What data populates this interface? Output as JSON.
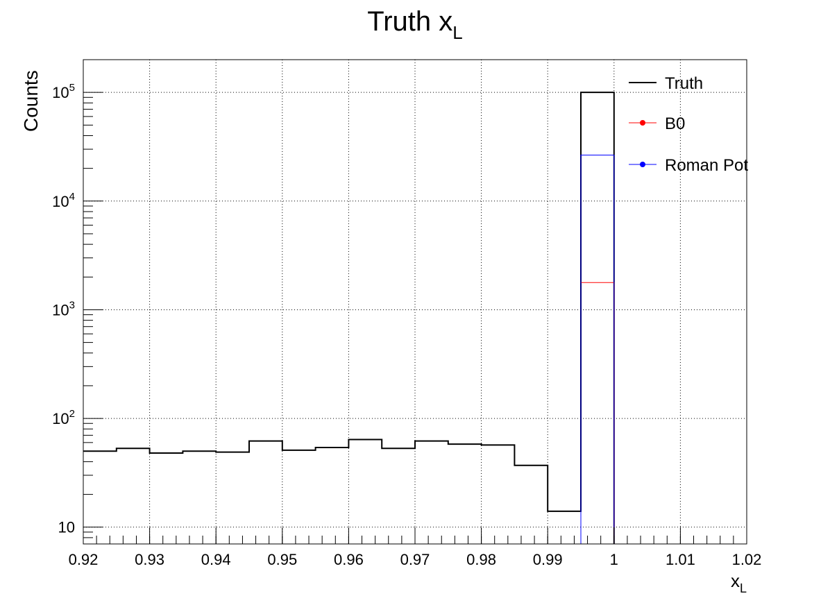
{
  "chart_data": {
    "type": "line",
    "title": "Truth x",
    "title_subscript": "L",
    "xlabel": "x",
    "xlabel_subscript": "L",
    "ylabel": "Counts",
    "xlim": [
      0.92,
      1.02
    ],
    "ylim": [
      7,
      200000
    ],
    "yscale": "log",
    "grid": true,
    "legend_position": "top-right",
    "x_ticks": [
      "0.92",
      "0.93",
      "0.94",
      "0.95",
      "0.96",
      "0.97",
      "0.98",
      "0.99",
      "1",
      "1.01",
      "1.02"
    ],
    "y_ticks": [
      {
        "value": 10,
        "base": "10",
        "exp": ""
      },
      {
        "value": 100,
        "base": "10",
        "exp": "2"
      },
      {
        "value": 1000,
        "base": "10",
        "exp": "3"
      },
      {
        "value": 10000,
        "base": "10",
        "exp": "4"
      },
      {
        "value": 100000,
        "base": "10",
        "exp": "5"
      }
    ],
    "bin_edges": [
      0.92,
      0.925,
      0.93,
      0.935,
      0.94,
      0.945,
      0.95,
      0.955,
      0.96,
      0.965,
      0.97,
      0.975,
      0.98,
      0.985,
      0.99,
      0.995,
      1.0,
      1.005,
      1.01,
      1.015,
      1.02
    ],
    "series": [
      {
        "name": "Truth",
        "color": "#000000",
        "values": [
          50,
          53,
          48,
          50,
          49,
          62,
          51,
          54,
          64,
          53,
          62,
          58,
          57,
          37,
          14,
          100000,
          0,
          0,
          0,
          0
        ]
      },
      {
        "name": "B0",
        "color": "#ff0000",
        "values": [
          0,
          0,
          0,
          0,
          0,
          0,
          0,
          0,
          0,
          0,
          0,
          0,
          0,
          0,
          0,
          1780,
          0,
          0,
          0,
          0
        ]
      },
      {
        "name": "Roman Pot",
        "color": "#0000ff",
        "values": [
          0,
          0,
          0,
          0,
          0,
          0,
          0,
          0,
          0,
          0,
          0,
          0,
          0,
          0,
          0,
          26500,
          0,
          0,
          0,
          0
        ]
      }
    ]
  }
}
